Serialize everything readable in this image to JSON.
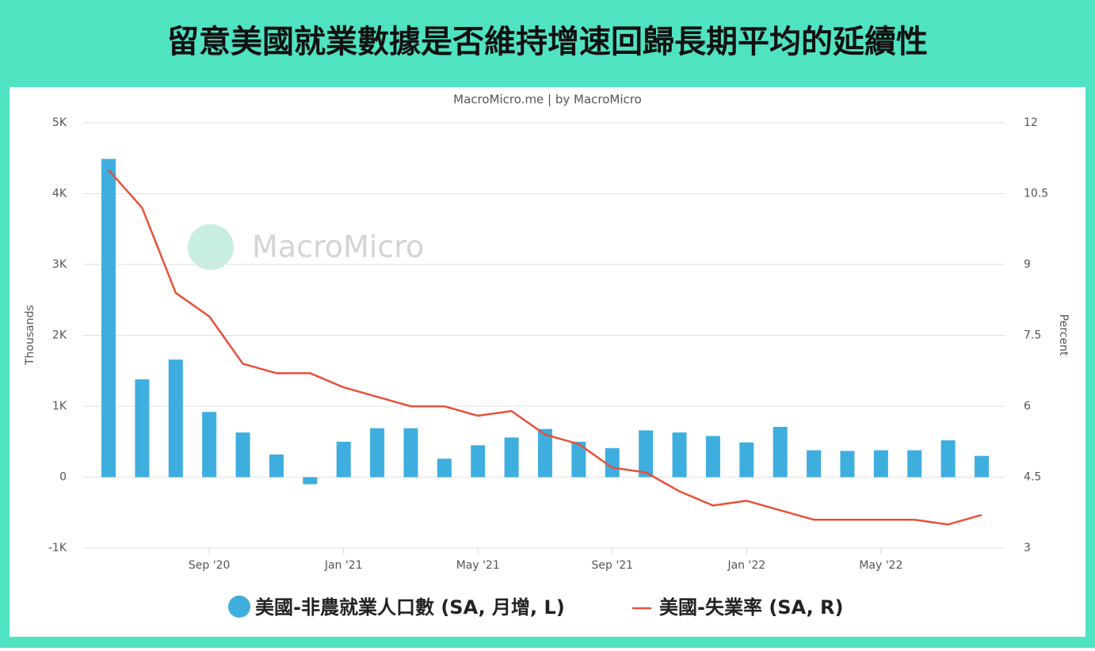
{
  "title": "留意美國就業數據是否維持增速回歸長期平均的延續性",
  "chart_data": {
    "type": "bar-line",
    "subtitle": "MacroMicro.me | by MacroMicro",
    "watermark": "MacroMicro",
    "y_label": "Thousands",
    "y2_label": "Percent",
    "categories": [
      null,
      null,
      null,
      "Sep '20",
      null,
      null,
      null,
      "Jan '21",
      null,
      null,
      null,
      "May '21",
      null,
      null,
      null,
      "Sep '21",
      null,
      null,
      null,
      "Jan '22",
      null,
      null,
      null,
      "May '22",
      null,
      null,
      null
    ],
    "ylim": [
      -1,
      5
    ],
    "yticks": [
      {
        "value": -1,
        "label": "-1K"
      },
      0,
      {
        "value": 1,
        "label": "1K"
      },
      {
        "value": 2,
        "label": "2K"
      },
      {
        "value": 3,
        "label": "3K"
      },
      {
        "value": 4,
        "label": "4K"
      },
      {
        "value": 5,
        "label": "5K"
      }
    ],
    "y2lim": [
      3,
      12
    ],
    "y2ticks": [
      3,
      4.5,
      6,
      7.5,
      9,
      10.5,
      12
    ],
    "grid": true,
    "series": [
      {
        "name": "美國-非農就業人口數 (SA, 月增, L)",
        "type": "bar",
        "color": "#3eaedf",
        "values": [
          4.49,
          1.38,
          1.66,
          0.92,
          0.63,
          0.32,
          -0.1,
          0.5,
          0.69,
          0.69,
          0.26,
          0.45,
          0.56,
          0.68,
          0.5,
          0.41,
          0.66,
          0.63,
          0.58,
          0.49,
          0.71,
          0.38,
          0.37,
          0.38,
          0.38,
          0.52,
          0.3
        ]
      },
      {
        "name": "美國-失業率 (SA, R)",
        "type": "line",
        "axis": "y2",
        "color": "#e8513a",
        "values": [
          11.0,
          10.2,
          8.4,
          7.9,
          6.9,
          6.7,
          6.7,
          6.4,
          6.2,
          6.0,
          6.0,
          5.8,
          5.9,
          5.4,
          5.2,
          4.7,
          4.6,
          4.2,
          3.9,
          4.0,
          3.8,
          3.6,
          3.6,
          3.6,
          3.6,
          3.5,
          3.7
        ]
      }
    ]
  }
}
